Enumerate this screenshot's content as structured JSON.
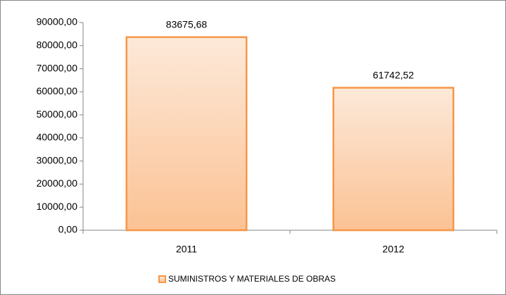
{
  "chart_data": {
    "type": "bar",
    "categories": [
      "2011",
      "2012"
    ],
    "series": [
      {
        "name": "SUMINISTROS Y MATERIALES DE OBRAS",
        "color": "#f79646",
        "values": [
          83675.68,
          61742.52
        ],
        "value_labels": [
          "83675,68",
          "61742,52"
        ]
      }
    ],
    "ylim": [
      0,
      90000
    ],
    "yticks": [
      {
        "value": 0,
        "label": "0,00"
      },
      {
        "value": 10000,
        "label": "10000,00"
      },
      {
        "value": 20000,
        "label": "20000,00"
      },
      {
        "value": 30000,
        "label": "30000,00"
      },
      {
        "value": 40000,
        "label": "40000,00"
      },
      {
        "value": 50000,
        "label": "50000,00"
      },
      {
        "value": 60000,
        "label": "60000,00"
      },
      {
        "value": 70000,
        "label": "70000,00"
      },
      {
        "value": 80000,
        "label": "80000,00"
      },
      {
        "value": 90000,
        "label": "90000,00"
      }
    ],
    "grid": false,
    "legend": "bottom"
  }
}
